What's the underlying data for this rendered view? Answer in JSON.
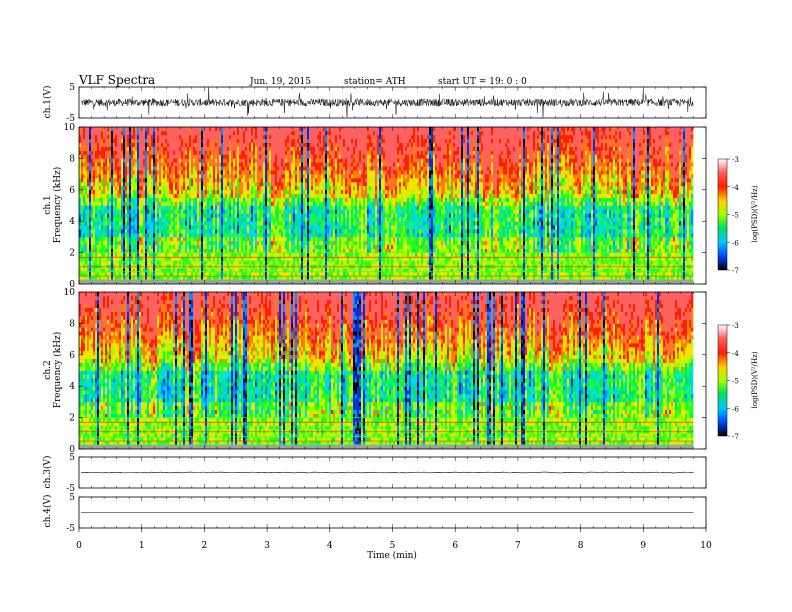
{
  "header": {
    "title": "VLF  Spectra",
    "date": "Jun. 19, 2015",
    "station": "station= ATH",
    "start": "start  UT =    19: 0  : 0"
  },
  "chart_data": [
    {
      "type": "line",
      "name": "ch1-waveform",
      "ylabel": "ch.1(V)",
      "ylim": [
        -5,
        5
      ],
      "yticks": [
        "5",
        "-5"
      ],
      "level": 0.0,
      "amplitude": 1.2
    },
    {
      "type": "heatmap",
      "name": "ch1-spectrogram",
      "ylabel_channel": "ch.1",
      "ylabel": "Frequency  (kHz)",
      "ylim": [
        0,
        10
      ],
      "yticks": [
        "0",
        "2",
        "4",
        "6",
        "8",
        "10"
      ],
      "xlim": [
        0,
        10
      ],
      "data_end_min": 9.8,
      "colorbar": {
        "label": "log(PSD)(V²/Hz)",
        "range": [
          -7,
          -3
        ],
        "ticks": [
          "-3",
          "-4",
          "-5",
          "-6",
          "-7"
        ]
      }
    },
    {
      "type": "heatmap",
      "name": "ch2-spectrogram",
      "ylabel_channel": "ch.2",
      "ylabel": "Frequency  (kHz)",
      "ylim": [
        0,
        10
      ],
      "yticks": [
        "0",
        "2",
        "4",
        "6",
        "8",
        "10"
      ],
      "xlim": [
        0,
        10
      ],
      "data_end_min": 9.8,
      "colorbar": {
        "label": "log(PSD)(V²/Hz)",
        "range": [
          -7,
          -3
        ],
        "ticks": [
          "-3",
          "-4",
          "-5",
          "-6",
          "-7"
        ]
      }
    },
    {
      "type": "line",
      "name": "ch3-waveform",
      "ylabel": "ch.3(V)",
      "ylim": [
        -5,
        5
      ],
      "yticks": [
        "5",
        "-5"
      ],
      "level": 0.0,
      "amplitude": 0.15
    },
    {
      "type": "line",
      "name": "ch4-waveform",
      "ylabel": "ch.4(V)",
      "ylim": [
        -5,
        5
      ],
      "yticks": [
        "5",
        "-5"
      ],
      "level": 0.0,
      "amplitude": 0.0
    }
  ],
  "xaxis": {
    "label": "Time  (min)",
    "range": [
      0,
      10
    ],
    "ticks": [
      "0",
      "1",
      "2",
      "3",
      "4",
      "5",
      "6",
      "7",
      "8",
      "9",
      "10"
    ]
  }
}
